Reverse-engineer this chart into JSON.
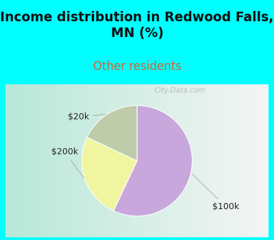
{
  "title": "Income distribution in Redwood Falls,\nMN (%)",
  "subtitle": "Other residents",
  "title_color": "#111111",
  "subtitle_color": "#cc6633",
  "title_fontsize": 13.5,
  "subtitle_fontsize": 12,
  "background_cyan": "#00ffff",
  "chart_bg_left": "#b8e8d8",
  "chart_bg_right": "#f0f0f0",
  "slices": [
    {
      "label": "$100k",
      "value": 57,
      "color": "#c8a8dc"
    },
    {
      "label": "$200k",
      "value": 25,
      "color": "#f0f5a0"
    },
    {
      "label": "$20k",
      "value": 18,
      "color": "#beccaa"
    }
  ],
  "startangle": 90,
  "watermark": "City-Data.com",
  "label_fontsize": 9,
  "label_color": "#222222"
}
